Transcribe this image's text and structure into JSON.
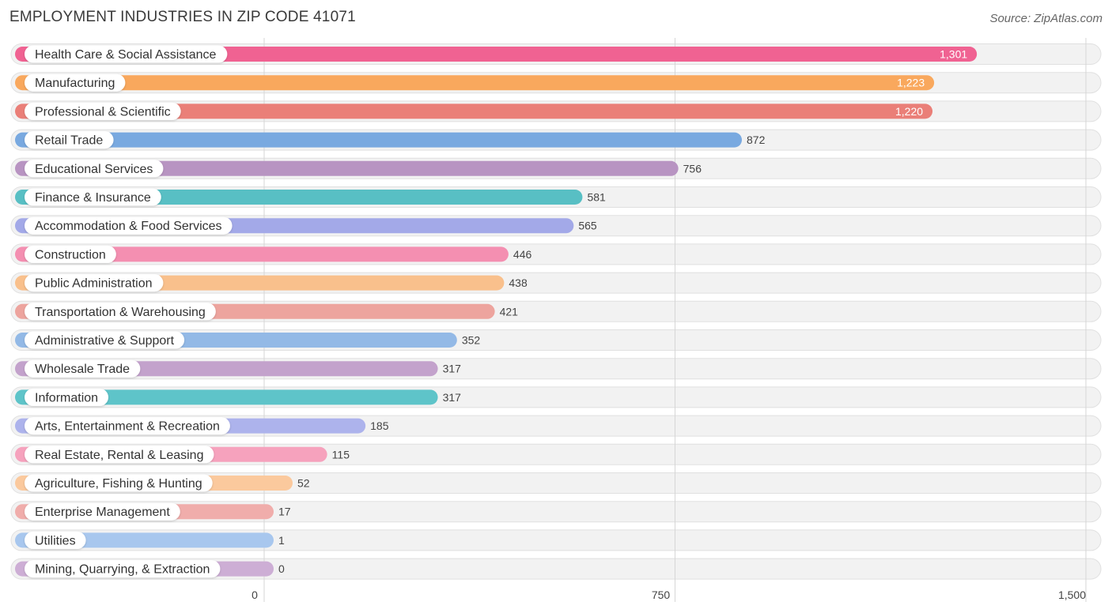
{
  "title": "EMPLOYMENT INDUSTRIES IN ZIP CODE 41071",
  "source": "Source: ZipAtlas.com",
  "chart_data": {
    "type": "bar",
    "orientation": "horizontal",
    "title": "EMPLOYMENT INDUSTRIES IN ZIP CODE 41071",
    "xlabel": "",
    "ylabel": "",
    "xlim": [
      0,
      1500
    ],
    "ticks": [
      0,
      750,
      1500
    ],
    "tick_labels": [
      "0",
      "750",
      "1,500"
    ],
    "grid": true,
    "categories": [
      "Health Care & Social Assistance",
      "Manufacturing",
      "Professional & Scientific",
      "Retail Trade",
      "Educational Services",
      "Finance & Insurance",
      "Accommodation & Food Services",
      "Construction",
      "Public Administration",
      "Transportation & Warehousing",
      "Administrative & Support",
      "Wholesale Trade",
      "Information",
      "Arts, Entertainment & Recreation",
      "Real Estate, Rental & Leasing",
      "Agriculture, Fishing & Hunting",
      "Enterprise Management",
      "Utilities",
      "Mining, Quarrying, & Extraction"
    ],
    "values": [
      1301,
      1223,
      1220,
      872,
      756,
      581,
      565,
      446,
      438,
      421,
      352,
      317,
      317,
      185,
      115,
      52,
      17,
      1,
      0
    ],
    "value_labels": [
      "1,301",
      "1,223",
      "1,220",
      "872",
      "756",
      "581",
      "565",
      "446",
      "438",
      "421",
      "352",
      "317",
      "317",
      "185",
      "115",
      "52",
      "17",
      "1",
      "0"
    ],
    "colors": [
      "#f06292",
      "#f9a85d",
      "#ea7f78",
      "#79a9e0",
      "#b894c2",
      "#58bfc4",
      "#a3a9e8",
      "#f48fb1",
      "#f9c08c",
      "#eda49e",
      "#93b9e6",
      "#c3a2cc",
      "#5ec4c9",
      "#adb3ec",
      "#f6a2bd",
      "#fbc99d",
      "#f0adab",
      "#a8c7ee",
      "#cdaed5"
    ]
  }
}
